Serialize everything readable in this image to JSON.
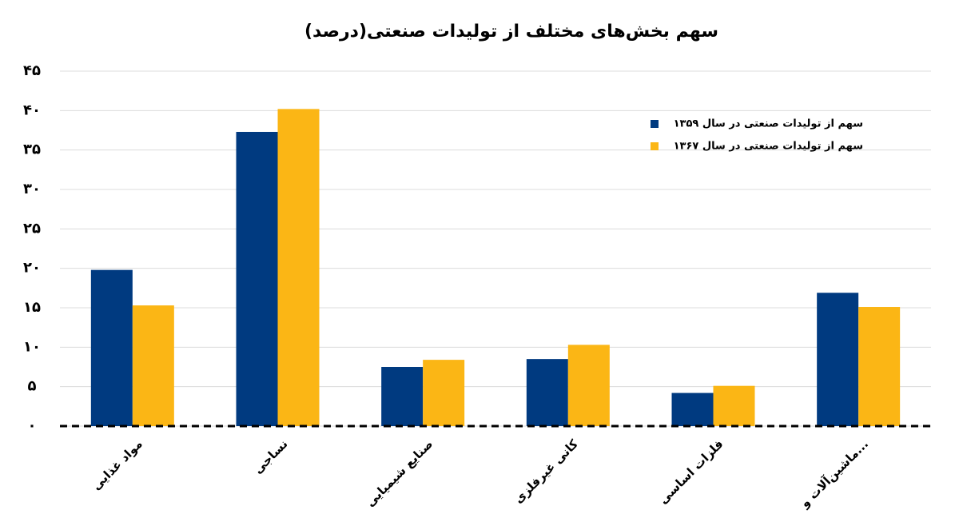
{
  "chart_data": {
    "type": "bar",
    "title": "سهم بخش‌های مختلف  از تولیدات صنعتی(درصد)",
    "categories": [
      "مواد غذایی",
      "نساجی",
      "صنایع شیمیایی",
      "کانی غیرفلزی",
      "فلزات اساسی",
      "ماشین‌آلات و..."
    ],
    "series": [
      {
        "name": "سهم از تولیدات صنعتی در سال ۱۳۵۹",
        "color": "#003a80",
        "values": [
          19.8,
          37.3,
          7.5,
          8.5,
          4.2,
          16.9
        ]
      },
      {
        "name": "سهم از تولیدات صنعتی در سال ۱۳۶۷",
        "color": "#fbb615",
        "values": [
          15.3,
          40.2,
          8.4,
          10.3,
          5.1,
          15.1
        ]
      }
    ],
    "ylim": [
      0,
      45
    ],
    "yticks": [
      {
        "value": 0,
        "label": "۰"
      },
      {
        "value": 5,
        "label": "۵"
      },
      {
        "value": 10,
        "label": "۱۰"
      },
      {
        "value": 15,
        "label": "۱۵"
      },
      {
        "value": 20,
        "label": "۲۰"
      },
      {
        "value": 25,
        "label": "۲۵"
      },
      {
        "value": 30,
        "label": "۳۰"
      },
      {
        "value": 35,
        "label": "۳۵"
      },
      {
        "value": 40,
        "label": "۴۰"
      },
      {
        "value": 45,
        "label": "۴۵"
      }
    ],
    "grid": true,
    "legend": "top-right"
  }
}
